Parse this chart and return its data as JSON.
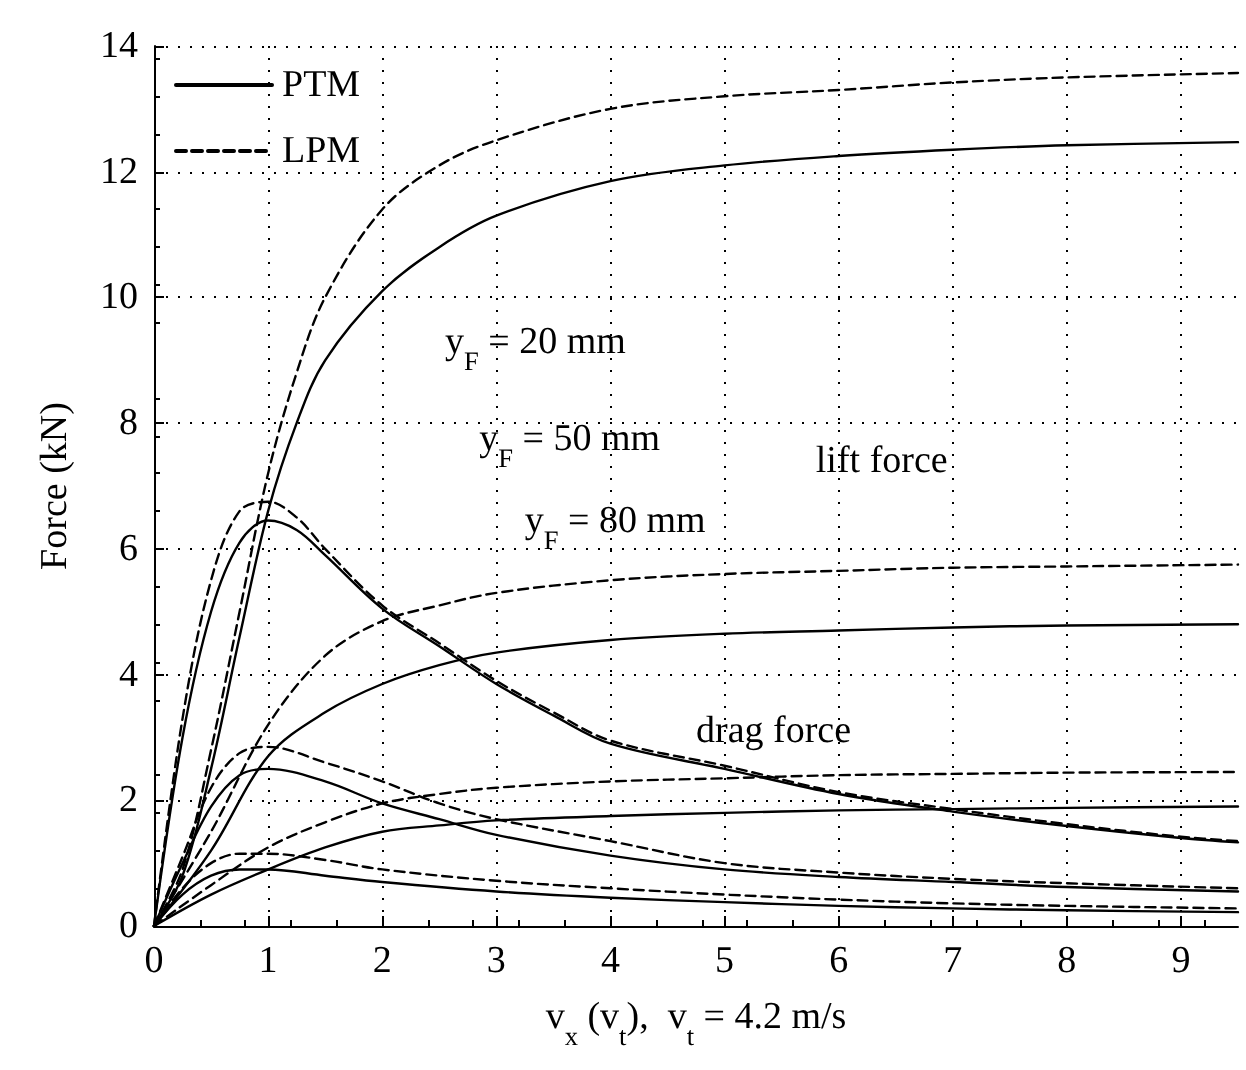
{
  "chart_data": {
    "type": "line",
    "xlabel": "v$_{x}$ (v$_{t}$),  v$_{t}$ = 4.2 m/s",
    "ylabel": "Force (kN)",
    "xlim": [
      0,
      9.5
    ],
    "xticks": [
      0,
      1,
      2,
      3,
      4,
      5,
      6,
      7,
      8,
      9
    ],
    "ylim": [
      0,
      14
    ],
    "yticks": [
      0,
      2,
      4,
      6,
      8,
      10,
      12,
      14
    ],
    "grid": true,
    "legend": "top left",
    "marker": "none",
    "annotations": [
      "y$_{F}$ = 20 mm",
      "y$_{F}$ = 50 mm",
      "y$_{F}$ = 80 mm",
      "lift force",
      "drag force"
    ],
    "series": [
      {
        "name": "PTM",
        "color": "#000000",
        "line_style": "solid",
        "x": [
          0,
          0.25,
          0.5,
          0.75,
          1,
          1.25,
          1.5,
          2,
          2.5,
          3,
          4,
          5,
          6,
          7,
          8,
          9.5
        ],
        "values": [
          0,
          0.8,
          2.5,
          4.6,
          6.6,
          8.0,
          9.0,
          10.1,
          10.8,
          11.3,
          11.85,
          12.1,
          12.25,
          12.35,
          12.42,
          12.47
        ]
      },
      {
        "name": "LPM",
        "color": "#000000",
        "line_style": "dashed",
        "x": [
          0,
          0.25,
          0.5,
          0.75,
          1,
          1.25,
          1.5,
          2,
          2.5,
          3,
          4,
          5,
          6,
          7,
          8,
          9.5
        ],
        "values": [
          0,
          0.9,
          2.8,
          5.0,
          7.2,
          8.8,
          10.0,
          11.4,
          12.1,
          12.5,
          13.0,
          13.2,
          13.3,
          13.42,
          13.5,
          13.57
        ]
      },
      {
        "color": "#000000",
        "line_style": "solid",
        "x": [
          0,
          0.25,
          0.5,
          0.75,
          1,
          1.25,
          1.5,
          2,
          2.5,
          3,
          3.5,
          4,
          5,
          6,
          7,
          8,
          9,
          9.5
        ],
        "values": [
          0,
          3.0,
          5.0,
          6.1,
          6.45,
          6.3,
          5.9,
          5.05,
          4.45,
          3.85,
          3.35,
          2.9,
          2.5,
          2.1,
          1.82,
          1.59,
          1.4,
          1.33
        ]
      },
      {
        "color": "#000000",
        "line_style": "dashed",
        "x": [
          0,
          0.25,
          0.5,
          0.75,
          1,
          1.25,
          1.5,
          2,
          2.5,
          3,
          3.5,
          4,
          5,
          6,
          7,
          8,
          9,
          9.5
        ],
        "values": [
          0,
          3.3,
          5.5,
          6.6,
          6.75,
          6.5,
          6.0,
          5.1,
          4.5,
          3.9,
          3.4,
          2.95,
          2.55,
          2.13,
          1.86,
          1.62,
          1.42,
          1.35
        ]
      },
      {
        "color": "#000000",
        "line_style": "solid",
        "x": [
          0,
          0.5,
          1,
          1.5,
          2,
          2.5,
          3,
          4,
          5,
          6,
          7,
          8,
          9.5
        ],
        "values": [
          0,
          1.2,
          2.7,
          3.4,
          3.85,
          4.15,
          4.35,
          4.55,
          4.65,
          4.7,
          4.75,
          4.78,
          4.8
        ]
      },
      {
        "color": "#000000",
        "line_style": "dashed",
        "x": [
          0,
          0.5,
          1,
          1.5,
          2,
          2.5,
          3,
          4,
          5,
          6,
          7,
          8,
          9.5
        ],
        "values": [
          0,
          1.5,
          3.2,
          4.3,
          4.85,
          5.1,
          5.3,
          5.5,
          5.6,
          5.65,
          5.7,
          5.72,
          5.75
        ]
      },
      {
        "color": "#000000",
        "line_style": "solid",
        "x": [
          0,
          0.25,
          0.5,
          0.75,
          1,
          1.5,
          2,
          2.5,
          3,
          4,
          5,
          6,
          7,
          8,
          9.5
        ],
        "values": [
          0,
          1.0,
          1.9,
          2.4,
          2.5,
          2.3,
          1.95,
          1.7,
          1.45,
          1.12,
          0.9,
          0.78,
          0.7,
          0.62,
          0.55
        ]
      },
      {
        "color": "#000000",
        "line_style": "dashed",
        "x": [
          0,
          0.25,
          0.5,
          0.75,
          1,
          1.5,
          2,
          2.5,
          3,
          4,
          5,
          6,
          7,
          8,
          9.5
        ],
        "values": [
          0,
          1.1,
          2.2,
          2.75,
          2.85,
          2.6,
          2.3,
          1.95,
          1.7,
          1.35,
          1.0,
          0.85,
          0.75,
          0.68,
          0.6
        ]
      },
      {
        "color": "#000000",
        "line_style": "solid",
        "x": [
          0,
          0.5,
          1,
          1.5,
          2,
          2.5,
          3,
          4,
          5,
          6,
          7,
          8,
          9.5
        ],
        "values": [
          0,
          0.5,
          0.9,
          1.25,
          1.5,
          1.6,
          1.68,
          1.75,
          1.8,
          1.84,
          1.86,
          1.88,
          1.9
        ]
      },
      {
        "color": "#000000",
        "line_style": "dashed",
        "x": [
          0,
          0.5,
          1,
          1.5,
          2,
          2.5,
          3,
          4,
          5,
          6,
          7,
          8,
          9.5
        ],
        "values": [
          0,
          0.65,
          1.25,
          1.65,
          1.95,
          2.1,
          2.2,
          2.3,
          2.35,
          2.4,
          2.42,
          2.44,
          2.45
        ]
      },
      {
        "color": "#000000",
        "line_style": "solid",
        "x": [
          0,
          0.25,
          0.5,
          0.75,
          1,
          1.5,
          2,
          3,
          4,
          5,
          6,
          7,
          8,
          9.5
        ],
        "values": [
          0,
          0.5,
          0.8,
          0.9,
          0.9,
          0.8,
          0.7,
          0.55,
          0.45,
          0.38,
          0.32,
          0.28,
          0.25,
          0.22
        ]
      },
      {
        "color": "#000000",
        "line_style": "dashed",
        "x": [
          0,
          0.25,
          0.5,
          0.75,
          1,
          1.5,
          2,
          3,
          4,
          5,
          6,
          7,
          8,
          9.5
        ],
        "values": [
          0,
          0.6,
          1.0,
          1.15,
          1.15,
          1.05,
          0.9,
          0.72,
          0.6,
          0.5,
          0.42,
          0.36,
          0.32,
          0.28
        ]
      }
    ]
  }
}
